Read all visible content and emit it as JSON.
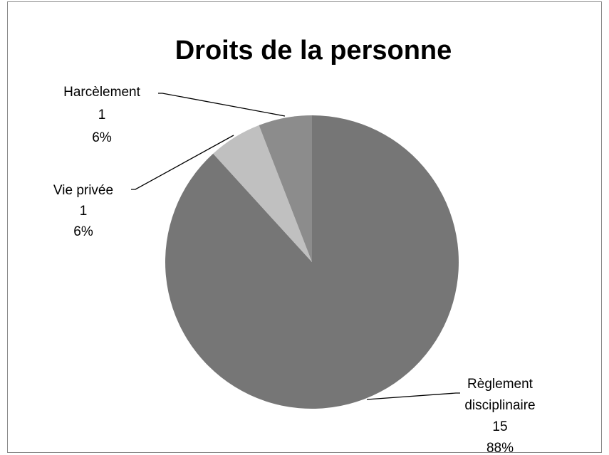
{
  "chart_data": {
    "type": "pie",
    "title": "Droits de la personne",
    "categories": [
      "Règlement disciplinaire",
      "Vie privée",
      "Harcèlement"
    ],
    "category_label_lines": [
      [
        "Règlement",
        "disciplinaire"
      ],
      [
        "Vie privée"
      ],
      [
        "Harcèlement"
      ]
    ],
    "values": [
      15,
      1,
      1
    ],
    "percent_labels": [
      "88%",
      "6%",
      "6%"
    ],
    "colors": [
      "#767676",
      "#c0c0c0",
      "#8c8c8c"
    ],
    "start_angle": 0,
    "direction": "clockwise"
  }
}
